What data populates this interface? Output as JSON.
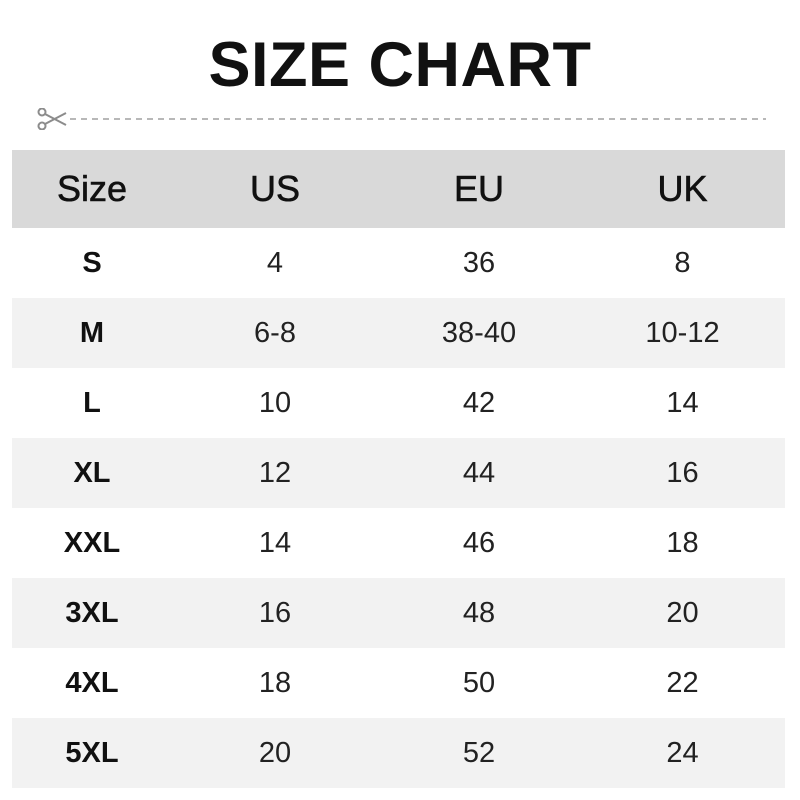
{
  "title": "SIZE CHART",
  "cut_icon": "scissors-icon",
  "colors": {
    "header_bg": "#d9d9d9",
    "alt_row_bg": "#f2f2f2",
    "dash": "#a0a0a0"
  },
  "table": {
    "headers": [
      "Size",
      "US",
      "EU",
      "UK"
    ],
    "rows": [
      [
        "S",
        "4",
        "36",
        "8"
      ],
      [
        "M",
        "6-8",
        "38-40",
        "10-12"
      ],
      [
        "L",
        "10",
        "42",
        "14"
      ],
      [
        "XL",
        "12",
        "44",
        "16"
      ],
      [
        "XXL",
        "14",
        "46",
        "18"
      ],
      [
        "3XL",
        "16",
        "48",
        "20"
      ],
      [
        "4XL",
        "18",
        "50",
        "22"
      ],
      [
        "5XL",
        "20",
        "52",
        "24"
      ]
    ]
  }
}
